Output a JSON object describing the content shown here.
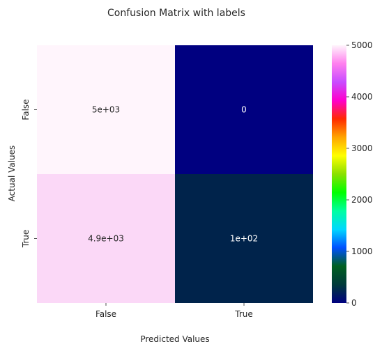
{
  "chart_data": {
    "type": "heatmap",
    "title": "Confusion Matrix with labels",
    "xlabel": "Predicted Values",
    "ylabel": "Actual Values",
    "x_categories": [
      "False",
      "True"
    ],
    "y_categories": [
      "False",
      "True"
    ],
    "values": [
      [
        5000,
        0
      ],
      [
        4900,
        100
      ]
    ],
    "annotations": [
      [
        "5e+03",
        "0"
      ],
      [
        "4.9e+03",
        "1e+02"
      ]
    ],
    "colormap": "gist_ncar",
    "cell_colors": [
      [
        "#fff5fc",
        "#000080"
      ],
      [
        "#fbd8f7",
        "#00234b"
      ]
    ],
    "annotation_colors": [
      [
        "#262626",
        "#ffffff"
      ],
      [
        "#262626",
        "#ffffff"
      ]
    ],
    "colorbar": {
      "range": [
        0,
        5000
      ],
      "ticks": [
        "0",
        "1000",
        "2000",
        "3000",
        "4000",
        "5000"
      ],
      "stops": [
        "#000080",
        "#003a3a",
        "#006020",
        "#0050ff",
        "#00d8ff",
        "#00ffa0",
        "#00ff00",
        "#8ae000",
        "#ffff00",
        "#ffa500",
        "#ff2a00",
        "#ff00cc",
        "#c84cff",
        "#ff80ee",
        "#fff5fc"
      ]
    }
  }
}
